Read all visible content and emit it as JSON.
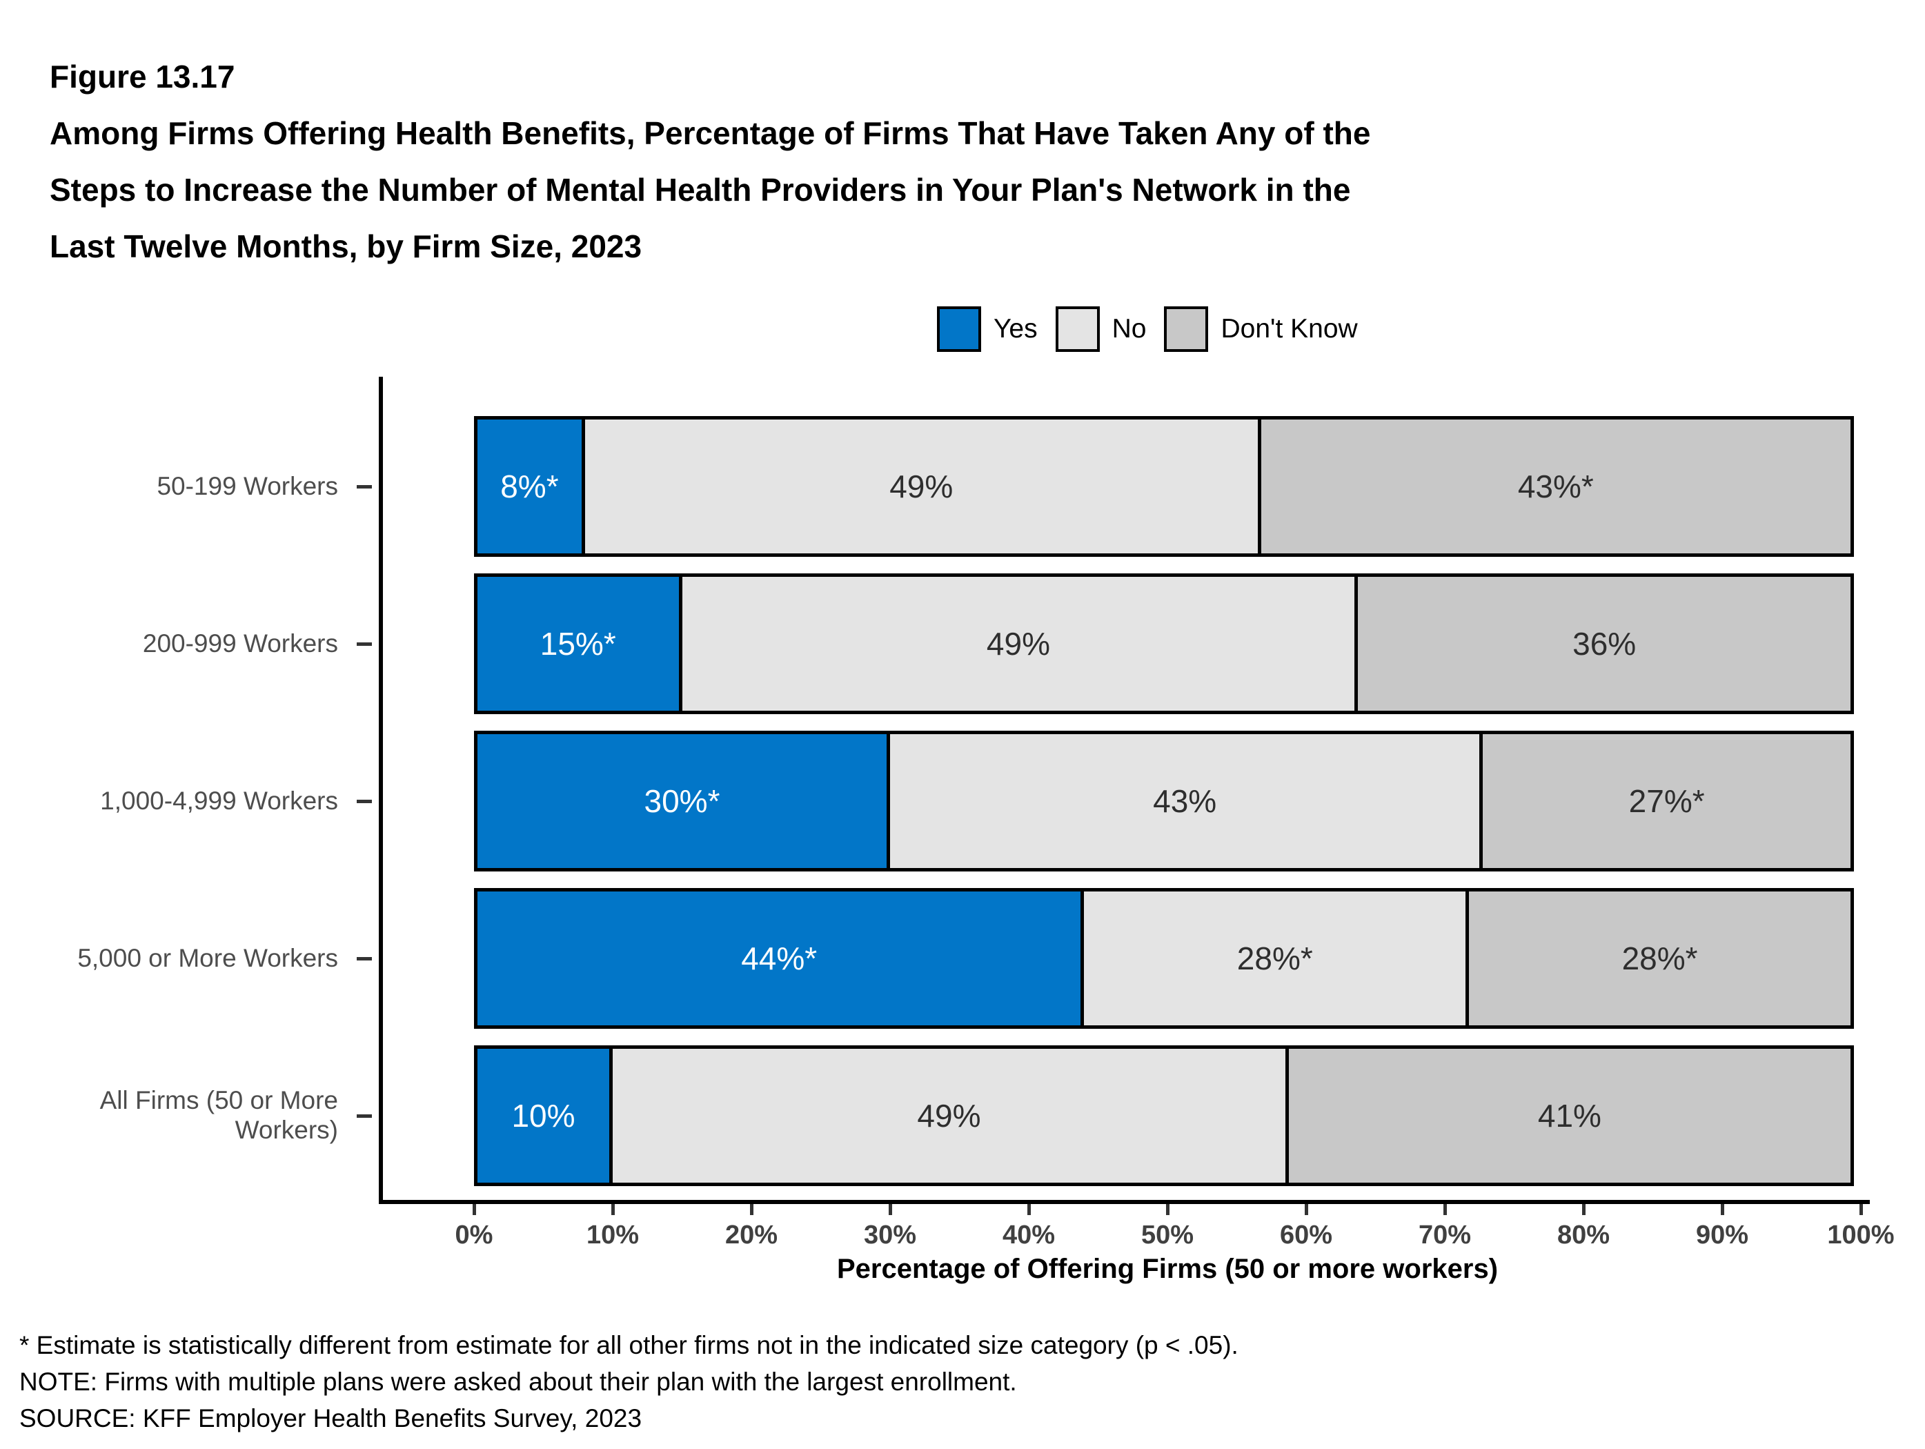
{
  "figure": {
    "number": "Figure 13.17",
    "title_lines": [
      "Among Firms Offering Health Benefits, Percentage of Firms That Have Taken Any of the",
      "Steps to Increase the Number of Mental Health Providers in Your Plan's Network in the",
      "Last Twelve Months, by Firm Size, 2023"
    ]
  },
  "legend": [
    {
      "label": "Yes",
      "color": "#0276C8"
    },
    {
      "label": "No",
      "color": "#E4E4E4"
    },
    {
      "label": "Don't Know",
      "color": "#C8C8C8"
    }
  ],
  "chart_data": {
    "type": "bar",
    "orientation": "horizontal",
    "stacked": true,
    "categories": [
      "50-199 Workers",
      "200-999 Workers",
      "1,000-4,999 Workers",
      "5,000 or More Workers",
      "All Firms (50 or More Workers)"
    ],
    "series": [
      {
        "name": "Yes",
        "color": "#0276C8",
        "label_color": "#ffffff",
        "values": [
          8,
          15,
          30,
          44,
          10
        ],
        "labels": [
          "8%*",
          "15%*",
          "30%*",
          "44%*",
          "10%"
        ]
      },
      {
        "name": "No",
        "color": "#E4E4E4",
        "label_color": "#2e2e2e",
        "values": [
          49,
          49,
          43,
          28,
          49
        ],
        "labels": [
          "49%",
          "49%",
          "43%",
          "28%*",
          "49%"
        ]
      },
      {
        "name": "Don't Know",
        "color": "#C8C8C8",
        "label_color": "#2e2e2e",
        "values": [
          43,
          36,
          27,
          28,
          41
        ],
        "labels": [
          "43%*",
          "36%",
          "27%*",
          "28%*",
          "41%"
        ]
      }
    ],
    "xlabel": "Percentage of Offering Firms (50 or more workers)",
    "x_ticks": [
      "0%",
      "10%",
      "20%",
      "30%",
      "40%",
      "50%",
      "60%",
      "70%",
      "80%",
      "90%",
      "100%"
    ],
    "xlim": [
      0,
      100
    ],
    "grid": false,
    "legend_position": "top"
  },
  "footnotes": [
    "* Estimate is statistically different from estimate for all other firms not in the indicated size category (p < .05).",
    "NOTE: Firms with multiple plans were asked about their plan with the largest enrollment.",
    "SOURCE: KFF Employer Health Benefits Survey, 2023"
  ]
}
